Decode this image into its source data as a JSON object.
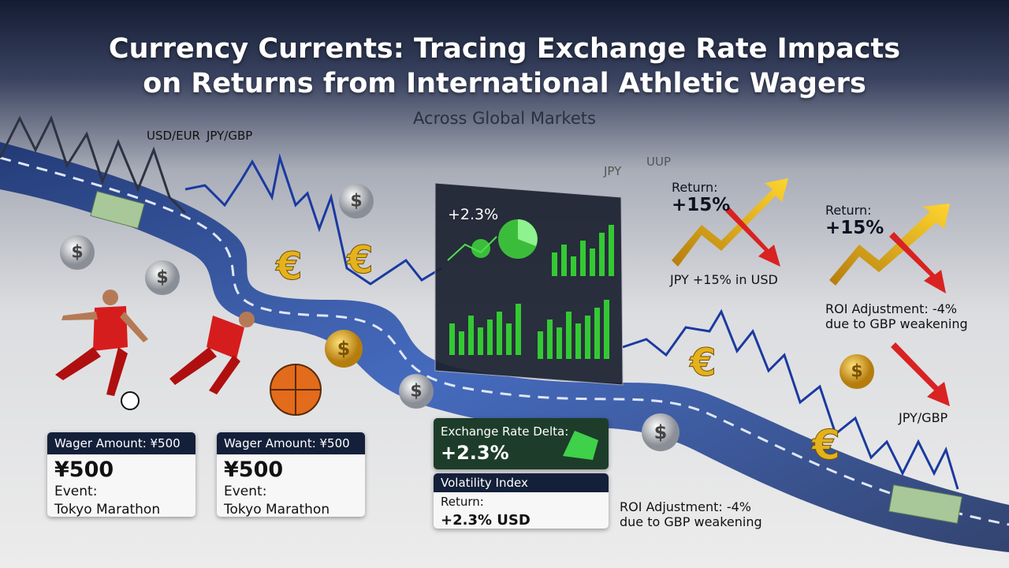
{
  "header": {
    "title_lines": [
      "Currency Currents: Tracing Exchange Rate Impacts",
      "on Returns from International Athletic Wagers"
    ],
    "subtitle": "Across Global Markets"
  },
  "pair_labels": [
    "USD/EUR",
    "JPY/GBP",
    "JPY",
    "UUP"
  ],
  "symbols": {
    "euro": "€",
    "dollar": "$"
  },
  "return_cards": [
    {
      "label": "Return:",
      "value": "+15%",
      "note_lines": [
        "JPY +15% in USD"
      ]
    },
    {
      "label": "Return:",
      "value": "+15%",
      "note_lines": [
        "ROI Adjustment: -4%",
        "due to GBP weakening"
      ]
    }
  ],
  "pair_label_bottom": "JPY/GBP",
  "dashboard": {
    "value": "+2.3%"
  },
  "wager_cards": [
    {
      "header": "Wager Amount: ¥500",
      "amount": "¥500",
      "event_label": "Event:",
      "event": "Tokyo Marathon"
    },
    {
      "header": "Wager Amount: ¥500",
      "amount": "¥500",
      "event_label": "Event:",
      "event": "Tokyo Marathon"
    }
  ],
  "exchange_card": {
    "header": "Exchange Rate Delta:",
    "value": "+2.3%"
  },
  "volatility_card": {
    "header": "Volatility Index",
    "label": "Return:",
    "value": "+2.3% USD"
  },
  "roi_note": {
    "lines": [
      "ROI Adjustment: -4%",
      "due to GBP weakening"
    ]
  }
}
